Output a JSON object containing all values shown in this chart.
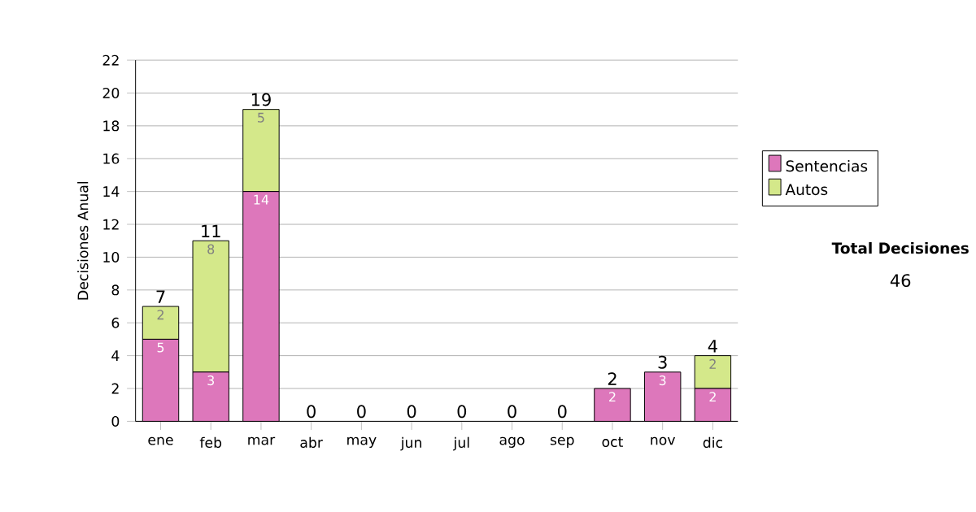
{
  "chart_data": {
    "type": "bar",
    "stacked": true,
    "ylabel": "Decisiones Anual",
    "categories": [
      "ene",
      "feb",
      "mar",
      "abr",
      "may",
      "jun",
      "jul",
      "ago",
      "sep",
      "oct",
      "nov",
      "dic"
    ],
    "series": [
      {
        "name": "Sentencias",
        "color": "#dd77bb",
        "values": [
          5,
          3,
          14,
          0,
          0,
          0,
          0,
          0,
          0,
          2,
          3,
          2
        ],
        "value_labels": [
          "5",
          "3",
          "14",
          null,
          null,
          null,
          null,
          null,
          null,
          "2",
          "3",
          "2"
        ]
      },
      {
        "name": "Autos",
        "color": "#d4e88a",
        "values": [
          2,
          8,
          5,
          0,
          0,
          0,
          0,
          0,
          0,
          0,
          0,
          2
        ],
        "value_labels": [
          "2",
          "8",
          "5",
          null,
          null,
          null,
          null,
          null,
          null,
          null,
          null,
          "2"
        ]
      }
    ],
    "totals": [
      "7",
      "11",
      "19",
      "0",
      "0",
      "0",
      "0",
      "0",
      "0",
      "2",
      "3",
      "4"
    ],
    "ylim": [
      0,
      22
    ],
    "yticks": [
      0,
      2,
      4,
      6,
      8,
      10,
      12,
      14,
      16,
      18,
      20,
      22
    ],
    "grid": "y",
    "legend": "right",
    "annotations": [
      "Total Decisiones",
      "46"
    ]
  }
}
